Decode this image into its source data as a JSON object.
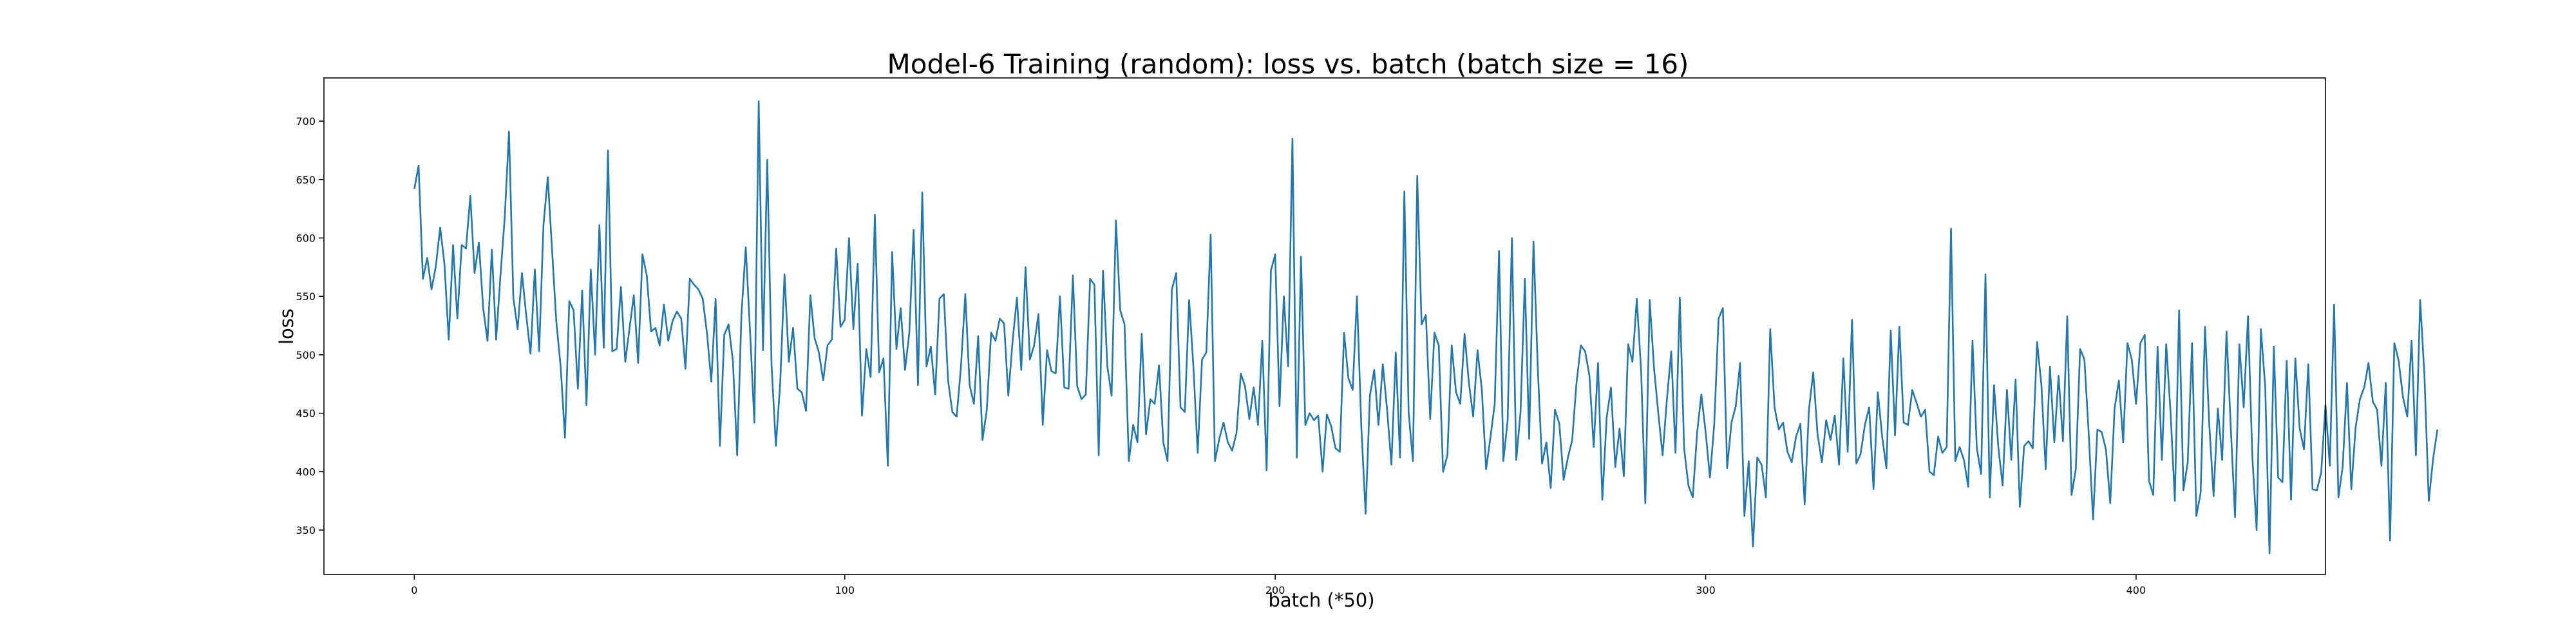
{
  "chart_data": {
    "type": "line",
    "title": "Model-6 Training (random): loss vs. batch (batch size = 16)",
    "xlabel": "batch (*50)",
    "ylabel": "loss",
    "xlim": [
      -21,
      444
    ],
    "ylim": [
      312,
      737
    ],
    "xticks": [
      0,
      100,
      200,
      300,
      400
    ],
    "yticks": [
      350,
      400,
      450,
      500,
      550,
      600,
      650,
      700
    ],
    "grid": false,
    "colors": {
      "line": "#1f77b4",
      "axes": "#000000",
      "background": "#ffffff"
    },
    "series": [
      {
        "values": [
          642,
          662,
          565,
          583,
          556,
          576,
          609,
          578,
          513,
          594,
          531,
          594,
          591,
          636,
          570,
          596,
          540,
          512,
          590,
          513,
          567,
          617,
          691,
          549,
          522,
          570,
          534,
          501,
          573,
          503,
          611,
          652,
          590,
          528,
          490,
          429,
          546,
          538,
          471,
          555,
          457,
          573,
          500,
          611,
          506,
          675,
          503,
          505,
          558,
          494,
          523,
          551,
          493,
          586,
          568,
          520,
          523,
          508,
          543,
          512,
          529,
          537,
          531,
          488,
          565,
          560,
          556,
          548,
          518,
          477,
          548,
          422,
          517,
          526,
          495,
          414,
          534,
          592,
          520,
          442,
          717,
          504,
          667,
          491,
          422,
          476,
          569,
          494,
          523,
          471,
          468,
          452,
          551,
          514,
          502,
          478,
          508,
          513,
          591,
          524,
          530,
          600,
          522,
          578,
          448,
          505,
          481,
          620,
          485,
          497,
          405,
          588,
          505,
          540,
          487,
          519,
          607,
          474,
          639,
          490,
          507,
          466,
          548,
          552,
          478,
          451,
          447,
          490,
          552,
          474,
          458,
          516,
          427,
          453,
          519,
          512,
          531,
          527,
          465,
          512,
          549,
          487,
          575,
          496,
          508,
          535,
          440,
          504,
          486,
          484,
          550,
          472,
          471,
          568,
          473,
          462,
          466,
          565,
          560,
          414,
          572,
          490,
          465,
          615,
          538,
          526,
          409,
          440,
          425,
          518,
          432,
          462,
          458,
          491,
          425,
          409,
          556,
          570,
          455,
          451,
          547,
          490,
          416,
          496,
          502,
          603,
          409,
          428,
          442,
          425,
          418,
          433,
          484,
          473,
          445,
          472,
          440,
          512,
          401,
          572,
          586,
          456,
          550,
          490,
          685,
          412,
          584,
          440,
          450,
          444,
          448,
          400,
          449,
          439,
          420,
          417,
          519,
          480,
          470,
          550,
          439,
          364,
          465,
          487,
          440,
          492,
          453,
          406,
          502,
          412,
          640,
          451,
          409,
          653,
          526,
          534,
          445,
          519,
          508,
          400,
          414,
          508,
          468,
          458,
          518,
          476,
          447,
          504,
          470,
          402,
          429,
          458,
          589,
          409,
          444,
          600,
          410,
          451,
          565,
          428,
          597,
          488,
          407,
          425,
          386,
          453,
          441,
          393,
          412,
          427,
          476,
          508,
          503,
          482,
          421,
          493,
          376,
          446,
          472,
          404,
          437,
          396,
          509,
          494,
          548,
          487,
          373,
          547,
          489,
          450,
          414,
          462,
          503,
          416,
          549,
          420,
          388,
          378,
          433,
          466,
          434,
          395,
          441,
          531,
          540,
          403,
          442,
          456,
          493,
          362,
          409,
          336,
          412,
          406,
          378,
          522,
          455,
          436,
          442,
          417,
          408,
          430,
          441,
          372,
          453,
          485,
          432,
          408,
          444,
          427,
          448,
          406,
          497,
          417,
          530,
          407,
          415,
          440,
          455,
          385,
          468,
          430,
          403,
          521,
          431,
          524,
          442,
          440,
          470,
          459,
          447,
          453,
          400,
          397,
          430,
          416,
          421,
          608,
          409,
          421,
          410,
          387,
          512,
          420,
          398,
          569,
          378,
          474,
          421,
          388,
          470,
          410,
          479,
          370,
          422,
          426,
          420,
          511,
          474,
          402,
          490,
          425,
          482,
          426,
          533,
          380,
          402,
          505,
          496,
          432,
          359,
          436,
          434,
          419,
          373,
          454,
          478,
          425,
          510,
          496,
          458,
          510,
          517,
          392,
          380,
          507,
          410,
          509,
          451,
          375,
          538,
          384,
          408,
          510,
          362,
          382,
          524,
          441,
          379,
          454,
          410,
          520,
          437,
          361,
          509,
          455,
          533,
          413,
          350,
          522,
          473,
          330,
          507,
          395,
          391,
          495,
          376,
          497,
          437,
          419,
          492,
          385,
          384,
          399,
          457,
          405,
          543,
          378,
          404,
          476,
          385,
          438,
          462,
          472,
          493,
          460,
          453,
          405,
          476,
          341,
          510,
          495,
          464,
          447,
          512,
          414,
          547,
          482,
          375,
          411,
          436
        ]
      }
    ]
  }
}
